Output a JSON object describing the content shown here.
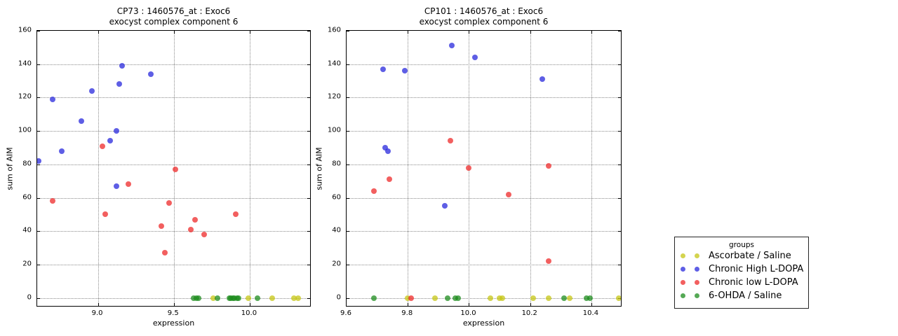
{
  "figure": {
    "background": "#ffffff"
  },
  "colors": {
    "yellow": "rgba(198,198,20,0.75)",
    "blue": "rgba(40,40,220,0.75)",
    "red": "rgba(238,42,42,0.75)",
    "green": "rgba(30,140,30,0.75)"
  },
  "legend": {
    "title": "groups",
    "items": [
      {
        "label": "Ascorbate / Saline",
        "color": "yellow"
      },
      {
        "label": "Chronic High L-DOPA",
        "color": "blue"
      },
      {
        "label": "Chronic low L-DOPA",
        "color": "red"
      },
      {
        "label": "6-OHDA / Saline",
        "color": "green"
      }
    ]
  },
  "chart_data": [
    {
      "type": "scatter",
      "title": "CP73 : 1460576_at : Exoc6",
      "subtitle": "exocyst complex component 6",
      "xlabel": "expression",
      "ylabel": "sum of AIM",
      "xlim": [
        8.6,
        10.407
      ],
      "ylim": [
        -5.6,
        160
      ],
      "grid": true,
      "xticks": [
        9.0,
        9.5,
        10.0
      ],
      "xtick_labels": [
        "9.0",
        "9.5",
        "10.0"
      ],
      "yticks": [
        0,
        20,
        40,
        60,
        80,
        100,
        120,
        140,
        160
      ],
      "series": [
        {
          "name": "Ascorbate / Saline",
          "color": "yellow",
          "points": [
            [
              9.76,
              0
            ],
            [
              9.99,
              0
            ],
            [
              10.15,
              0
            ],
            [
              10.29,
              0
            ],
            [
              10.32,
              0
            ]
          ]
        },
        {
          "name": "Chronic High L-DOPA",
          "color": "blue",
          "points": [
            [
              8.61,
              82
            ],
            [
              8.7,
              119
            ],
            [
              8.76,
              88
            ],
            [
              8.89,
              106
            ],
            [
              8.96,
              124
            ],
            [
              9.08,
              94
            ],
            [
              9.12,
              67
            ],
            [
              9.12,
              100
            ],
            [
              9.14,
              128
            ],
            [
              9.16,
              139
            ],
            [
              9.35,
              134
            ]
          ]
        },
        {
          "name": "Chronic low L-DOPA",
          "color": "red",
          "points": [
            [
              8.7,
              58
            ],
            [
              9.03,
              91
            ],
            [
              9.05,
              50
            ],
            [
              9.2,
              68
            ],
            [
              9.42,
              43
            ],
            [
              9.44,
              27
            ],
            [
              9.47,
              57
            ],
            [
              9.51,
              77
            ],
            [
              9.61,
              41
            ],
            [
              9.64,
              47
            ],
            [
              9.7,
              38
            ],
            [
              9.91,
              50
            ]
          ]
        },
        {
          "name": "6-OHDA / Saline",
          "color": "green",
          "points": [
            [
              9.63,
              0
            ],
            [
              9.65,
              0
            ],
            [
              9.665,
              0
            ],
            [
              9.79,
              0
            ],
            [
              9.865,
              0
            ],
            [
              9.875,
              0
            ],
            [
              9.89,
              0
            ],
            [
              9.9,
              0
            ],
            [
              9.915,
              0
            ],
            [
              9.925,
              0
            ],
            [
              10.05,
              0
            ]
          ]
        }
      ]
    },
    {
      "type": "scatter",
      "title": "CP101 : 1460576_at : Exoc6",
      "subtitle": "exocyst complex component 6",
      "xlabel": "expression",
      "ylabel": "sum of AIM",
      "xlim": [
        9.6,
        10.501
      ],
      "ylim": [
        -5.6,
        160
      ],
      "grid": true,
      "xticks": [
        9.6,
        9.8,
        10.0,
        10.2,
        10.4
      ],
      "xtick_labels": [
        "9.6",
        "9.8",
        "10.0",
        "10.2",
        "10.4"
      ],
      "yticks": [
        0,
        20,
        40,
        60,
        80,
        100,
        120,
        140,
        160
      ],
      "series": [
        {
          "name": "Ascorbate / Saline",
          "color": "yellow",
          "points": [
            [
              9.8,
              0
            ],
            [
              9.89,
              0
            ],
            [
              10.07,
              0
            ],
            [
              10.1,
              0
            ],
            [
              10.11,
              0
            ],
            [
              10.21,
              0
            ],
            [
              10.26,
              0
            ],
            [
              10.33,
              0
            ],
            [
              10.49,
              0
            ]
          ]
        },
        {
          "name": "Chronic High L-DOPA",
          "color": "blue",
          "points": [
            [
              9.72,
              137
            ],
            [
              9.725,
              90
            ],
            [
              9.735,
              88
            ],
            [
              9.79,
              136
            ],
            [
              9.92,
              55
            ],
            [
              9.945,
              151
            ],
            [
              10.02,
              144
            ],
            [
              10.24,
              131
            ]
          ]
        },
        {
          "name": "Chronic low L-DOPA",
          "color": "red",
          "points": [
            [
              9.69,
              64
            ],
            [
              9.74,
              71
            ],
            [
              9.81,
              0
            ],
            [
              9.94,
              94
            ],
            [
              10.0,
              78
            ],
            [
              10.13,
              62
            ],
            [
              10.26,
              79
            ],
            [
              10.26,
              22
            ]
          ]
        },
        {
          "name": "6-OHDA / Saline",
          "color": "green",
          "points": [
            [
              9.69,
              0
            ],
            [
              9.93,
              0
            ],
            [
              9.955,
              0
            ],
            [
              9.965,
              0
            ],
            [
              10.31,
              0
            ],
            [
              10.385,
              0
            ],
            [
              10.395,
              0
            ]
          ]
        }
      ]
    }
  ]
}
